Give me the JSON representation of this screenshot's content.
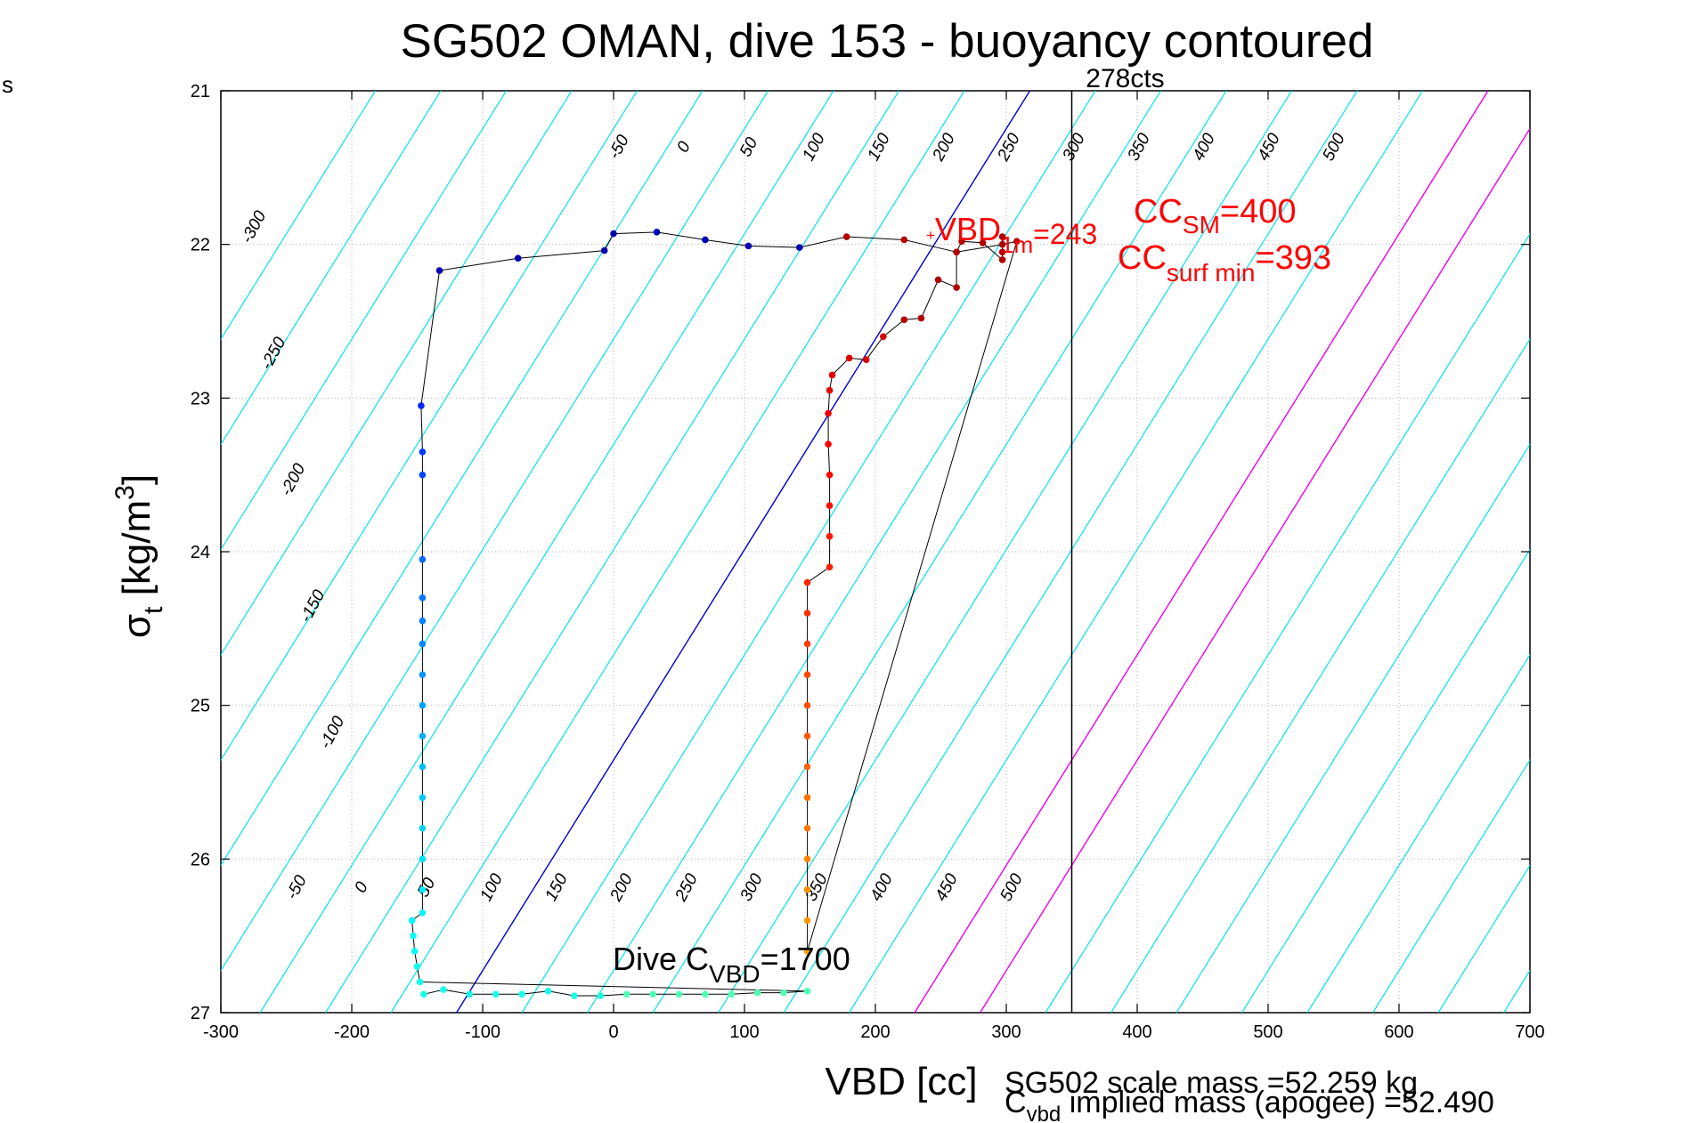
{
  "stray_label": "s",
  "chart_data": {
    "type": "scatter",
    "title": "SG502 OMAN, dive 153 - buoyancy contoured",
    "xlabel": "VBD [cc]",
    "ylabel_main": "σ",
    "ylabel_sub": "t",
    "ylabel_units": " [kg/m",
    "ylabel_sup": "3",
    "ylabel_close": "]",
    "xlim": [
      -300,
      700
    ],
    "ylim": [
      27,
      21
    ],
    "xticks": [
      "-300",
      "-200",
      "-100",
      "0",
      "100",
      "200",
      "300",
      "400",
      "500",
      "600",
      "700"
    ],
    "yticks": [
      "21",
      "22",
      "23",
      "24",
      "25",
      "26",
      "27"
    ],
    "grid": true,
    "colors": {
      "axis": "#000000",
      "grid": "#b0b0b0",
      "isopycnal": "#00e5ee",
      "zero_line": "#0000cc",
      "sm_lines": "#ee00ee",
      "annotation": "#ff0000"
    },
    "top_contour_labels": [
      "-300",
      "-250",
      "-200",
      "-150",
      "-100",
      "-50",
      "0",
      "50",
      "100",
      "150",
      "200",
      "250",
      "300",
      "350",
      "400",
      "450",
      "500"
    ],
    "bottom_contour_labels": [
      "-50",
      "0",
      "50",
      "100",
      "150",
      "200",
      "250",
      "300",
      "350",
      "400",
      "450",
      "500"
    ],
    "vertical_line": {
      "x": 350,
      "label": "278cts"
    },
    "annotations": {
      "vbd1m": {
        "main": "VBD",
        "sub": "1m",
        "value": "=243"
      },
      "ccsm": {
        "main": "CC",
        "sub": "SM",
        "value": "=400"
      },
      "ccsurf": {
        "main": "CC",
        "sub": "surf min",
        "value": "=393"
      },
      "dive": {
        "main": "Dive C",
        "sub": "VBD",
        "value": "=1700"
      },
      "scale_mass": "SG502 scale mass =52.259 kg",
      "implied_main": "C",
      "implied_sub": "vbd",
      "implied_rest": " implied mass (apogee) =52.490"
    },
    "series": [
      {
        "points": [
          [
            -145,
            26.88
          ],
          [
            -130,
            26.85
          ],
          [
            -110,
            26.88
          ],
          [
            -90,
            26.88
          ],
          [
            -70,
            26.88
          ],
          [
            -50,
            26.86
          ],
          [
            -30,
            26.89
          ],
          [
            -10,
            26.89
          ],
          [
            10,
            26.88
          ],
          [
            30,
            26.88
          ],
          [
            50,
            26.88
          ],
          [
            70,
            26.88
          ],
          [
            90,
            26.88
          ],
          [
            110,
            26.87
          ],
          [
            130,
            26.87
          ],
          [
            148,
            26.86
          ],
          [
            -148,
            26.8
          ],
          [
            -150,
            26.7
          ],
          [
            -152,
            26.6
          ],
          [
            -153,
            26.5
          ],
          [
            -154,
            26.4
          ],
          [
            -146,
            26.35
          ],
          [
            -146,
            26.2
          ],
          [
            -146,
            26.0
          ],
          [
            -146,
            25.8
          ],
          [
            -146,
            25.6
          ],
          [
            -146,
            25.4
          ],
          [
            -146,
            25.2
          ],
          [
            -146,
            25.0
          ],
          [
            -146,
            24.8
          ],
          [
            -146,
            24.6
          ],
          [
            -146,
            24.45
          ],
          [
            -146,
            24.3
          ],
          [
            -146,
            24.05
          ],
          [
            -146,
            23.5
          ],
          [
            -146,
            23.35
          ],
          [
            -147,
            23.05
          ],
          [
            -133,
            22.17
          ],
          [
            -73,
            22.09
          ],
          [
            -7,
            22.04
          ],
          [
            0,
            21.93
          ],
          [
            33,
            21.92
          ],
          [
            70,
            21.97
          ],
          [
            103,
            22.01
          ],
          [
            142,
            22.02
          ],
          [
            178,
            21.95
          ],
          [
            222,
            21.97
          ],
          [
            262,
            22.05
          ],
          [
            297,
            22.0
          ],
          [
            308,
            21.98
          ],
          [
            148,
            26.6
          ],
          [
            148,
            26.4
          ],
          [
            148,
            26.2
          ],
          [
            148,
            26.0
          ],
          [
            148,
            25.8
          ],
          [
            148,
            25.6
          ],
          [
            148,
            25.4
          ],
          [
            148,
            25.2
          ],
          [
            148,
            25.0
          ],
          [
            148,
            24.8
          ],
          [
            148,
            24.6
          ],
          [
            148,
            24.4
          ],
          [
            148,
            24.2
          ],
          [
            165,
            24.1
          ],
          [
            165,
            23.9
          ],
          [
            165,
            23.7
          ],
          [
            165,
            23.5
          ],
          [
            164,
            23.3
          ],
          [
            164,
            23.1
          ],
          [
            165,
            22.95
          ],
          [
            167,
            22.85
          ],
          [
            180,
            22.74
          ],
          [
            193,
            22.75
          ],
          [
            206,
            22.6
          ],
          [
            222,
            22.49
          ],
          [
            235,
            22.48
          ],
          [
            248,
            22.23
          ],
          [
            262,
            22.28
          ],
          [
            262,
            22.05
          ],
          [
            266,
            21.98
          ],
          [
            282,
            21.99
          ],
          [
            297,
            22.1
          ],
          [
            297,
            22.05
          ],
          [
            297,
            21.95
          ]
        ]
      }
    ]
  }
}
